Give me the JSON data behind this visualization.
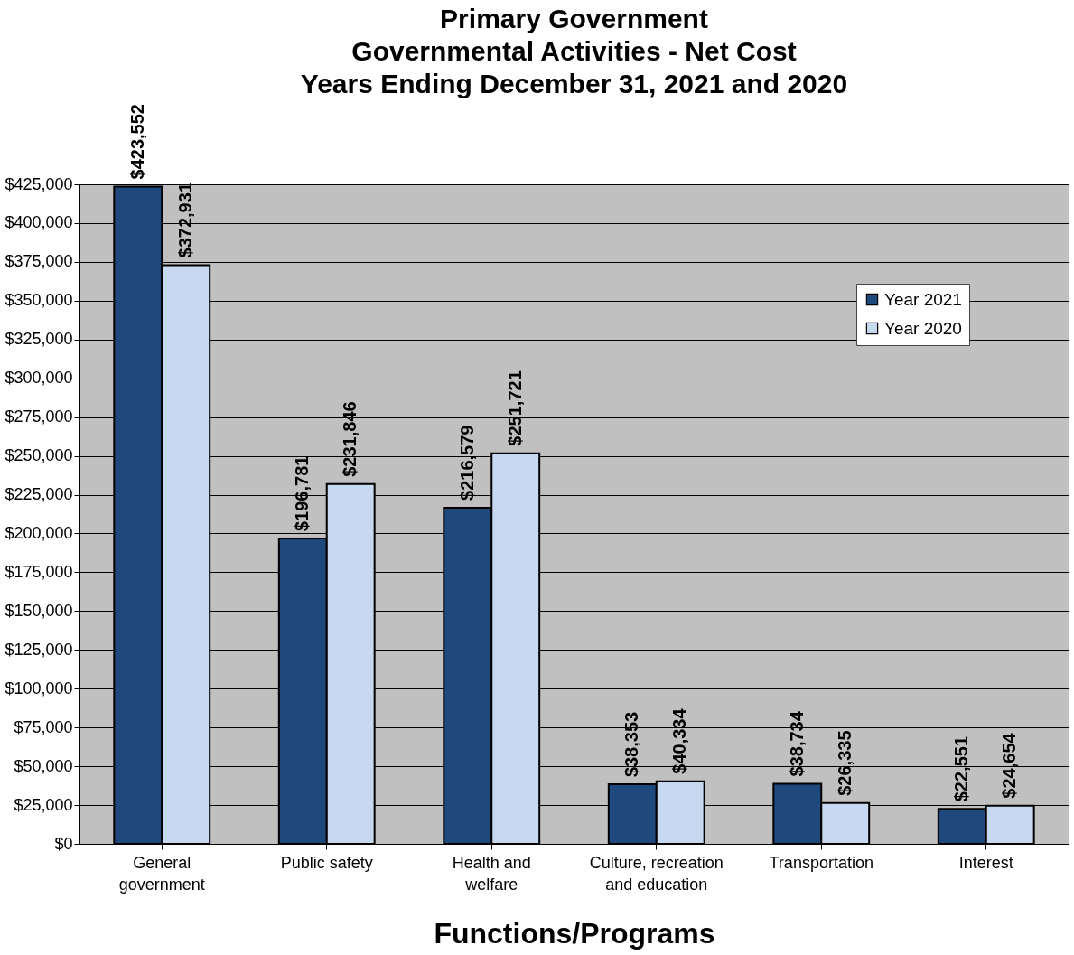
{
  "chart_data": {
    "type": "bar",
    "title": "Primary Government\nGovernmental Activities - Net Cost\nYears Ending December 31, 2021 and 2020",
    "xlabel": "Functions/Programs",
    "categories": [
      "General government",
      "Public safety",
      "Health and welfare",
      "Culture, recreation and education",
      "Transportation",
      "Interest"
    ],
    "series": [
      {
        "name": "Year 2021",
        "color": "#1f497d",
        "values": [
          423552,
          196781,
          216579,
          38353,
          38734,
          22551
        ],
        "value_labels": [
          "$423,552",
          "$196,781",
          "$216,579",
          "$38,353",
          "$38,734",
          "$22,551"
        ]
      },
      {
        "name": "Year 2020",
        "color": "#c6d9f1",
        "values": [
          372931,
          231846,
          251721,
          40334,
          26335,
          24654
        ],
        "value_labels": [
          "$372,931",
          "$231,846",
          "$251,721",
          "$40,334",
          "$26,335",
          "$24,654"
        ]
      }
    ],
    "ylim": [
      0,
      425000
    ],
    "yticks": [
      {
        "value": 0,
        "label": "$0"
      },
      {
        "value": 25000,
        "label": "$25,000"
      },
      {
        "value": 50000,
        "label": "$50,000"
      },
      {
        "value": 75000,
        "label": "$75,000"
      },
      {
        "value": 100000,
        "label": "$100,000"
      },
      {
        "value": 125000,
        "label": "$125,000"
      },
      {
        "value": 150000,
        "label": "$150,000"
      },
      {
        "value": 175000,
        "label": "$175,000"
      },
      {
        "value": 200000,
        "label": "$200,000"
      },
      {
        "value": 225000,
        "label": "$225,000"
      },
      {
        "value": 250000,
        "label": "$250,000"
      },
      {
        "value": 275000,
        "label": "$275,000"
      },
      {
        "value": 300000,
        "label": "$300,000"
      },
      {
        "value": 325000,
        "label": "$325,000"
      },
      {
        "value": 350000,
        "label": "$350,000"
      },
      {
        "value": 375000,
        "label": "$375,000"
      },
      {
        "value": 400000,
        "label": "$400,000"
      },
      {
        "value": 425000,
        "label": "$425,000"
      }
    ],
    "grid": "y",
    "legend": "top right"
  }
}
